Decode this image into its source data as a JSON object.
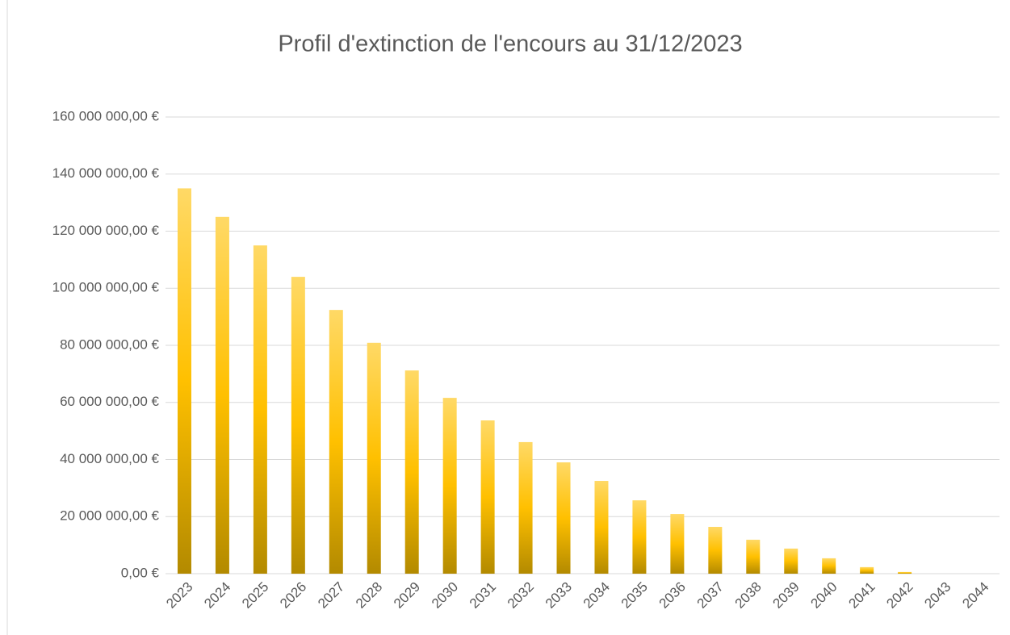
{
  "chart_data": {
    "type": "bar",
    "title": "Profil d'extinction de l'encours au 31/12/2023",
    "categories": [
      "2023",
      "2024",
      "2025",
      "2026",
      "2027",
      "2028",
      "2029",
      "2030",
      "2031",
      "2032",
      "2033",
      "2034",
      "2035",
      "2036",
      "2037",
      "2038",
      "2039",
      "2040",
      "2041",
      "2042",
      "2043",
      "2044"
    ],
    "values": [
      135000000,
      125000000,
      115000000,
      104000000,
      92400000,
      80900000,
      71200000,
      61600000,
      53700000,
      46100000,
      39000000,
      32500000,
      25700000,
      20900000,
      16400000,
      11900000,
      8800000,
      5400000,
      2300000,
      600000,
      0,
      0
    ],
    "color": "#ffc000",
    "ylim": [
      0,
      160000000
    ],
    "yticks": [
      {
        "value": 0,
        "label": "0,00 €"
      },
      {
        "value": 20000000,
        "label": "20 000 000,00 €"
      },
      {
        "value": 40000000,
        "label": "40 000 000,00 €"
      },
      {
        "value": 60000000,
        "label": "60 000 000,00 €"
      },
      {
        "value": 80000000,
        "label": "80 000 000,00 €"
      },
      {
        "value": 100000000,
        "label": "100 000 000,00 €"
      },
      {
        "value": 120000000,
        "label": "120 000 000,00 €"
      },
      {
        "value": 140000000,
        "label": "140 000 000,00 €"
      },
      {
        "value": 160000000,
        "label": "160 000 000,00 €"
      }
    ],
    "grid": true
  }
}
